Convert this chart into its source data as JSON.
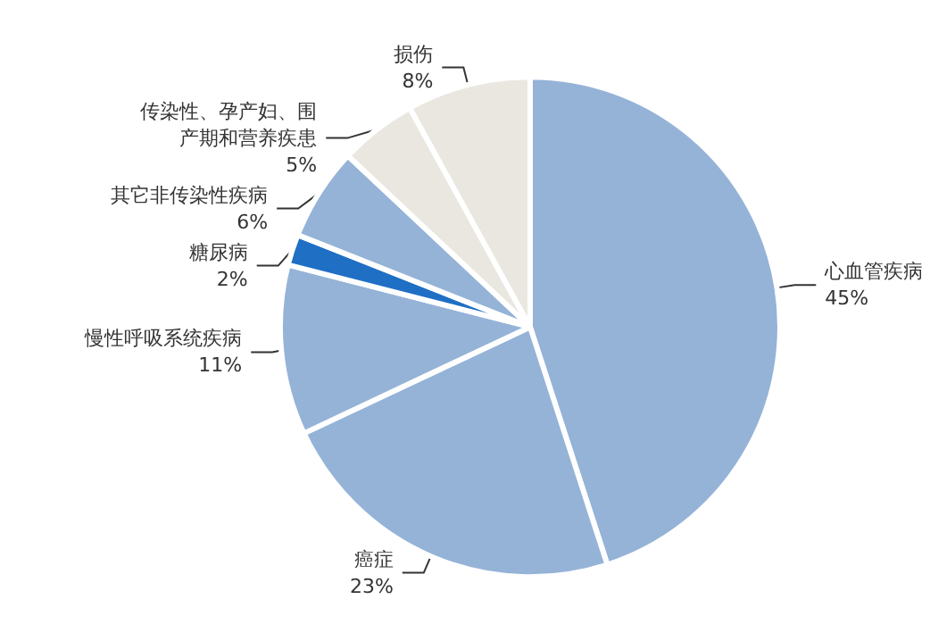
{
  "chart_data": {
    "type": "pie",
    "categories": [
      "心血管疾病",
      "癌症",
      "慢性呼吸系统疾病",
      "糖尿病",
      "其它非传染性疾病",
      "传染性、孕产妇、围产期和营养疾患",
      "损伤"
    ],
    "values": [
      45,
      23,
      11,
      2,
      6,
      5,
      8
    ],
    "value_labels": [
      "45%",
      "23%",
      "11%",
      "2%",
      "6%",
      "5%",
      "8%"
    ],
    "colors": [
      "#95b3d7",
      "#95b3d7",
      "#95b3d7",
      "#1f6fc5",
      "#95b3d7",
      "#e9e7df",
      "#e9e7df"
    ],
    "legend": false
  }
}
